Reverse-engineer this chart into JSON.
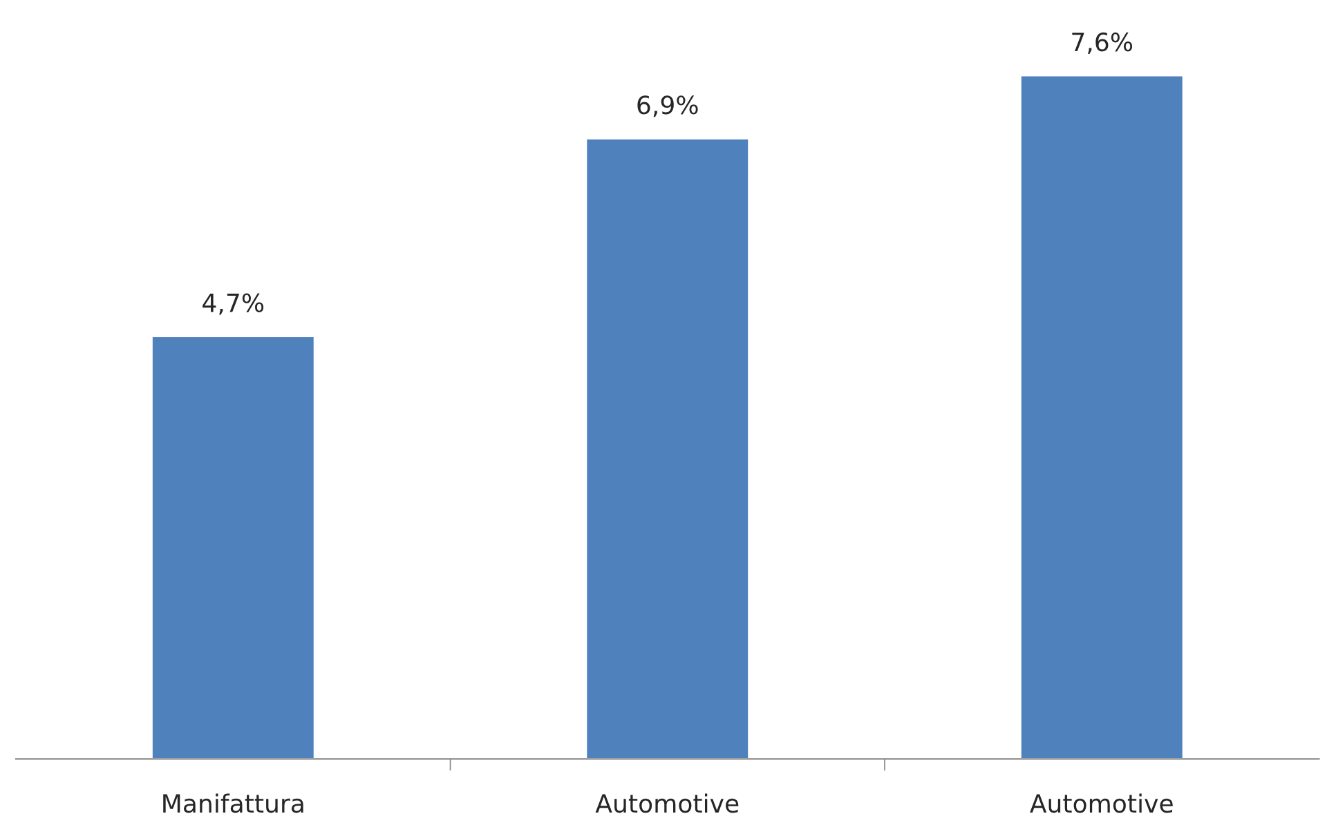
{
  "chart_data": {
    "type": "bar",
    "categories": [
      "Manifattura",
      "Automotive",
      "Automotive"
    ],
    "values": [
      4.7,
      6.9,
      7.6
    ],
    "value_labels": [
      "4,7%",
      "6,9%",
      "7,6%"
    ],
    "color": "#4f81bd",
    "grid": false,
    "legend": false
  }
}
